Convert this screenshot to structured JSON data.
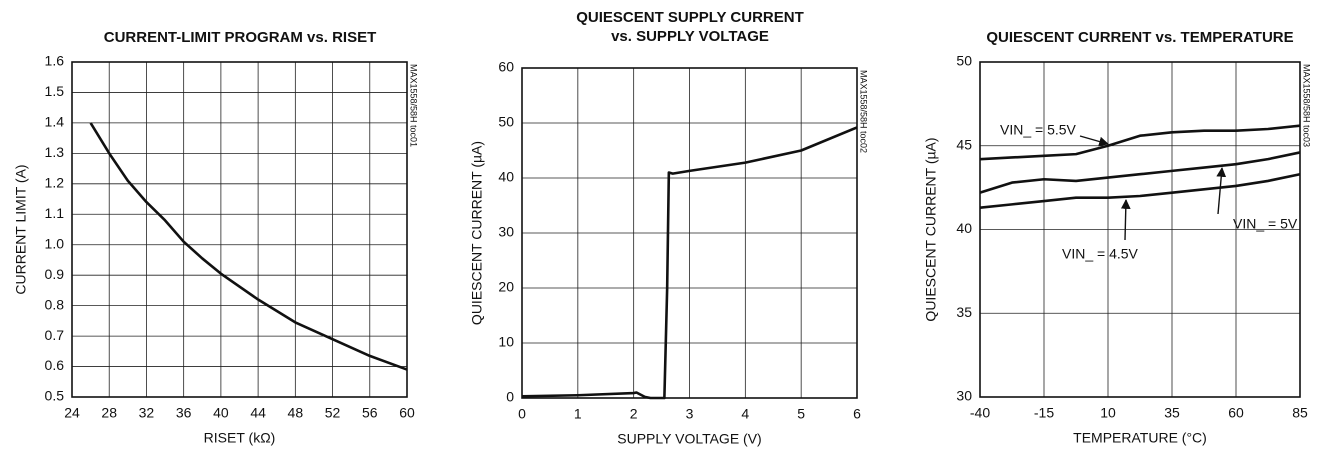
{
  "chart_data": [
    {
      "type": "line",
      "title": "CURRENT-LIMIT PROGRAM vs. RISET",
      "note": "MAX1558/58H toc01",
      "xlabel": "RISET (kΩ)",
      "ylabel": "CURRENT LIMIT (A)",
      "xlim": [
        24,
        60
      ],
      "xticks": [
        24,
        28,
        32,
        36,
        40,
        44,
        48,
        52,
        56,
        60
      ],
      "ylim": [
        0.5,
        1.6
      ],
      "yticks": [
        0.5,
        0.6,
        0.7,
        0.8,
        0.9,
        {
          "value": 1,
          "label": "1.0"
        },
        1.1,
        1.2,
        1.3,
        1.4,
        1.5,
        1.6
      ],
      "grid": true,
      "color": "#111111",
      "x": [
        26,
        28,
        30,
        32,
        34,
        36,
        38,
        40,
        44,
        48,
        52,
        56,
        60
      ],
      "values": [
        1.4,
        1.3,
        1.21,
        1.14,
        1.08,
        1.01,
        0.955,
        0.905,
        0.82,
        0.745,
        0.69,
        0.635,
        0.59
      ]
    },
    {
      "type": "line",
      "title": [
        "QUIESCENT SUPPLY CURRENT",
        "vs. SUPPLY VOLTAGE"
      ],
      "note": "MAX1558/58H toc02",
      "xlabel": "SUPPLY VOLTAGE (V)",
      "ylabel": "QUIESCENT CURRENT (µA)",
      "xlim": [
        0,
        6
      ],
      "xticks": [
        0,
        1,
        2,
        3,
        4,
        5,
        6
      ],
      "ylim": [
        0,
        60
      ],
      "yticks": [
        0,
        10,
        20,
        30,
        40,
        50,
        60
      ],
      "grid": true,
      "color": "#111111",
      "x": [
        0,
        1,
        2,
        2.05,
        2.2,
        2.3,
        2.55,
        2.6,
        2.63,
        2.7,
        3,
        4,
        5,
        6
      ],
      "values": [
        0.3,
        0.5,
        0.9,
        1.0,
        0.2,
        0,
        0,
        20,
        41,
        40.8,
        41.3,
        42.8,
        45,
        49.2
      ]
    },
    {
      "type": "line",
      "title": "QUIESCENT CURRENT vs. TEMPERATURE",
      "note": "MAX1558/58H toc03",
      "xlabel": "TEMPERATURE (°C)",
      "ylabel": "QUIESCENT CURRENT (µA)",
      "xlim": [
        -40,
        85
      ],
      "xticks": [
        -40,
        -15,
        10,
        35,
        60,
        85
      ],
      "ylim": [
        30,
        50
      ],
      "yticks": [
        30,
        35,
        40,
        45,
        50
      ],
      "grid": true,
      "x": [
        -40,
        -27.5,
        -15,
        -2.5,
        10,
        22.5,
        35,
        47.5,
        60,
        72.5,
        85
      ],
      "series": [
        {
          "name": "VIN_ = 5.5V",
          "color": "#111111",
          "values": [
            44.2,
            44.3,
            44.4,
            44.5,
            45.0,
            45.6,
            45.8,
            45.9,
            45.9,
            46.0,
            46.2
          ]
        },
        {
          "name": "VIN_ = 5V",
          "color": "#111111",
          "values": [
            42.2,
            42.8,
            43.0,
            42.9,
            43.1,
            43.3,
            43.5,
            43.7,
            43.9,
            44.2,
            44.6
          ]
        },
        {
          "name": "VIN_ = 4.5V",
          "color": "#111111",
          "values": [
            41.3,
            41.5,
            41.7,
            41.9,
            41.9,
            42.0,
            42.2,
            42.4,
            42.6,
            42.9,
            43.3
          ]
        }
      ]
    }
  ]
}
